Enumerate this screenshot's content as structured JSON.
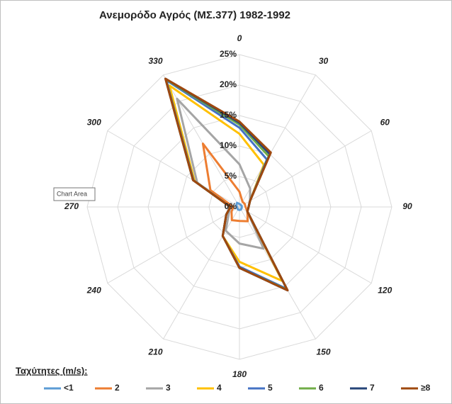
{
  "chart_data": {
    "type": "radar",
    "title": "Ανεμορόδο Αγρός (ΜΣ.377) 1982-1992",
    "categories": [
      "0",
      "30",
      "60",
      "90",
      "120",
      "150",
      "180",
      "210",
      "240",
      "270",
      "300",
      "330"
    ],
    "ylim": [
      0,
      25
    ],
    "yticks": [
      {
        "value": 0,
        "label": "0%"
      },
      {
        "value": 5,
        "label": "5%"
      },
      {
        "value": 10,
        "label": "10%"
      },
      {
        "value": 15,
        "label": "15%"
      },
      {
        "value": 20,
        "label": "20%"
      },
      {
        "value": 25,
        "label": "25%"
      }
    ],
    "grid": true,
    "legend_title": "Ταχύτητες (m/s):",
    "legend": "bottom",
    "tooltip": "Chart Area",
    "series": [
      {
        "name": "<1",
        "color": "#5b9bd5",
        "values": [
          0.5,
          0.4,
          0.4,
          0.4,
          0.4,
          0.5,
          0.5,
          0.5,
          0.4,
          0.4,
          0.6,
          0.8
        ]
      },
      {
        "name": "2",
        "color": "#ed7d31",
        "values": [
          2.5,
          1,
          1,
          1,
          1.5,
          2.7,
          2.3,
          2.5,
          1.5,
          1,
          5.5,
          12
        ]
      },
      {
        "name": "3",
        "color": "#a5a5a5",
        "values": [
          7,
          3.5,
          2,
          1.5,
          1.5,
          7.9,
          6,
          4.5,
          2,
          1.5,
          8,
          20.5
        ]
      },
      {
        "name": "4",
        "color": "#ffc000",
        "values": [
          12,
          8,
          2,
          1.5,
          1.5,
          14,
          9,
          5.5,
          2.5,
          1.5,
          8.5,
          23
        ]
      },
      {
        "name": "5",
        "color": "#4472c4",
        "values": [
          13,
          9,
          2,
          1.5,
          1.5,
          15.5,
          9.8,
          5.5,
          2.5,
          1.5,
          8.7,
          24
        ]
      },
      {
        "name": "6",
        "color": "#70ad47",
        "values": [
          13.5,
          9.6,
          2,
          1.5,
          1.5,
          15.7,
          10,
          5.5,
          2.5,
          1.5,
          8.8,
          24.2
        ]
      },
      {
        "name": "7",
        "color": "#264478",
        "values": [
          13.8,
          10,
          2,
          1.5,
          1.5,
          15.8,
          10,
          5.5,
          2.5,
          1.5,
          8.8,
          24.3
        ]
      },
      {
        "name": "≥8",
        "color": "#9e480e",
        "values": [
          14,
          10.3,
          2,
          1.5,
          1.5,
          15.8,
          10,
          5.5,
          2.5,
          1.5,
          8.8,
          24.3
        ]
      }
    ]
  }
}
